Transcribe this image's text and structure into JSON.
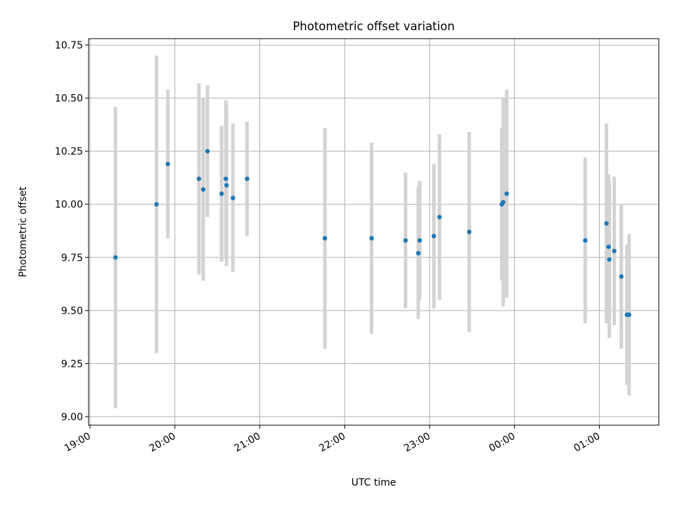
{
  "chart_data": {
    "type": "scatter",
    "title": "Photometric offset variation",
    "xlabel": "UTC time",
    "ylabel": "Photometric offset",
    "x_ticks": [
      "19:00",
      "20:00",
      "21:00",
      "22:00",
      "23:00",
      "00:00",
      "01:00"
    ],
    "y_ticks": [
      "9.00",
      "9.25",
      "9.50",
      "9.75",
      "10.00",
      "10.25",
      "10.50",
      "10.75"
    ],
    "xlim": [
      "2000-01-01T18:59:00",
      "2000-01-02T01:42:00"
    ],
    "ylim": [
      8.96,
      10.78
    ],
    "grid": true,
    "colors": {
      "marker": "#1f77b4",
      "errorbar": "#d3d3d3",
      "grid": "#b0b0b0"
    },
    "points": [
      {
        "time": "2000-01-01T19:18:00",
        "y": 9.75,
        "yerr": 0.71
      },
      {
        "time": "2000-01-01T19:47:00",
        "y": 10.0,
        "yerr": 0.7
      },
      {
        "time": "2000-01-01T19:55:00",
        "y": 10.19,
        "yerr": 0.35
      },
      {
        "time": "2000-01-01T20:17:00",
        "y": 10.12,
        "yerr": 0.45
      },
      {
        "time": "2000-01-01T20:20:00",
        "y": 10.07,
        "yerr": 0.43
      },
      {
        "time": "2000-01-01T20:23:00",
        "y": 10.25,
        "yerr": 0.31
      },
      {
        "time": "2000-01-01T20:33:00",
        "y": 10.05,
        "yerr": 0.32
      },
      {
        "time": "2000-01-01T20:36:00",
        "y": 10.12,
        "yerr": 0.37
      },
      {
        "time": "2000-01-01T20:36:30",
        "y": 10.09,
        "yerr": 0.38
      },
      {
        "time": "2000-01-01T20:41:00",
        "y": 10.03,
        "yerr": 0.35
      },
      {
        "time": "2000-01-01T20:51:00",
        "y": 10.12,
        "yerr": 0.27
      },
      {
        "time": "2000-01-01T21:46:00",
        "y": 9.84,
        "yerr": 0.52
      },
      {
        "time": "2000-01-01T22:19:00",
        "y": 9.84,
        "yerr": 0.45
      },
      {
        "time": "2000-01-01T22:43:00",
        "y": 9.83,
        "yerr": 0.32
      },
      {
        "time": "2000-01-01T22:52:00",
        "y": 9.77,
        "yerr": 0.31
      },
      {
        "time": "2000-01-01T22:53:00",
        "y": 9.83,
        "yerr": 0.28
      },
      {
        "time": "2000-01-01T23:03:00",
        "y": 9.85,
        "yerr": 0.34
      },
      {
        "time": "2000-01-01T23:07:00",
        "y": 9.94,
        "yerr": 0.39
      },
      {
        "time": "2000-01-01T23:28:00",
        "y": 9.87,
        "yerr": 0.47
      },
      {
        "time": "2000-01-01T23:51:00",
        "y": 10.0,
        "yerr": 0.36
      },
      {
        "time": "2000-01-01T23:52:00",
        "y": 10.01,
        "yerr": 0.49
      },
      {
        "time": "2000-01-01T23:54:30",
        "y": 10.05,
        "yerr": 0.49
      },
      {
        "time": "2000-01-02T00:50:00",
        "y": 9.83,
        "yerr": 0.39
      },
      {
        "time": "2000-01-02T01:05:00",
        "y": 9.91,
        "yerr": 0.47
      },
      {
        "time": "2000-01-02T01:06:30",
        "y": 9.8,
        "yerr": 0.34
      },
      {
        "time": "2000-01-02T01:07:00",
        "y": 9.74,
        "yerr": 0.37
      },
      {
        "time": "2000-01-02T01:10:30",
        "y": 9.78,
        "yerr": 0.35
      },
      {
        "time": "2000-01-02T01:15:30",
        "y": 9.66,
        "yerr": 0.34
      },
      {
        "time": "2000-01-02T01:19:30",
        "y": 9.48,
        "yerr": 0.33
      },
      {
        "time": "2000-01-02T01:21:00",
        "y": 9.48,
        "yerr": 0.38
      }
    ]
  }
}
